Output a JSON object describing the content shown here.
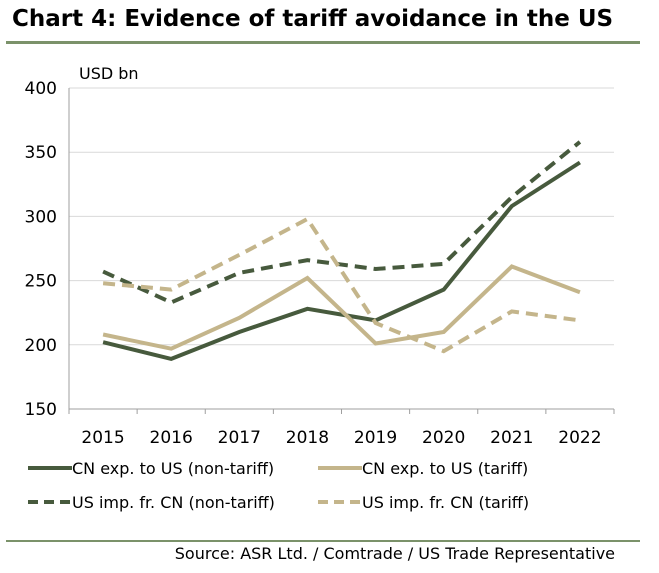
{
  "header": {
    "title": "Chart 4: Evidence of tariff avoidance in the US"
  },
  "footer": {
    "source": "Source: ASR Ltd. / Comtrade / US Trade Representative"
  },
  "colors": {
    "rule": "#7b926a",
    "dark_green": "#475a3d",
    "tan": "#c4b58b",
    "grid": "#d9d9d9",
    "axis": "#9f9f9f"
  },
  "chart_data": {
    "type": "line",
    "ylabel": "USD bn",
    "ylim": [
      150,
      400
    ],
    "yticks": [
      150,
      200,
      250,
      300,
      350,
      400
    ],
    "categories": [
      "2015",
      "2016",
      "2017",
      "2018",
      "2019",
      "2020",
      "2021",
      "2022"
    ],
    "grid": true,
    "legend_position": "bottom",
    "series": [
      {
        "name": "CN exp. to US (non-tariff)",
        "color": "#475a3d",
        "style": "solid",
        "values": [
          202,
          189,
          210,
          228,
          219,
          243,
          308,
          342
        ]
      },
      {
        "name": "CN exp. to US (tariff)",
        "color": "#c4b58b",
        "style": "solid",
        "values": [
          208,
          197,
          221,
          252,
          201,
          210,
          261,
          241
        ]
      },
      {
        "name": "US imp. fr. CN (non-tariff)",
        "color": "#475a3d",
        "style": "dashed",
        "values": [
          257,
          233,
          256,
          266,
          259,
          263,
          315,
          358
        ]
      },
      {
        "name": "US imp. fr. CN (tariff)",
        "color": "#c4b58b",
        "style": "dashed",
        "values": [
          248,
          243,
          270,
          298,
          217,
          195,
          226,
          219
        ]
      }
    ]
  }
}
